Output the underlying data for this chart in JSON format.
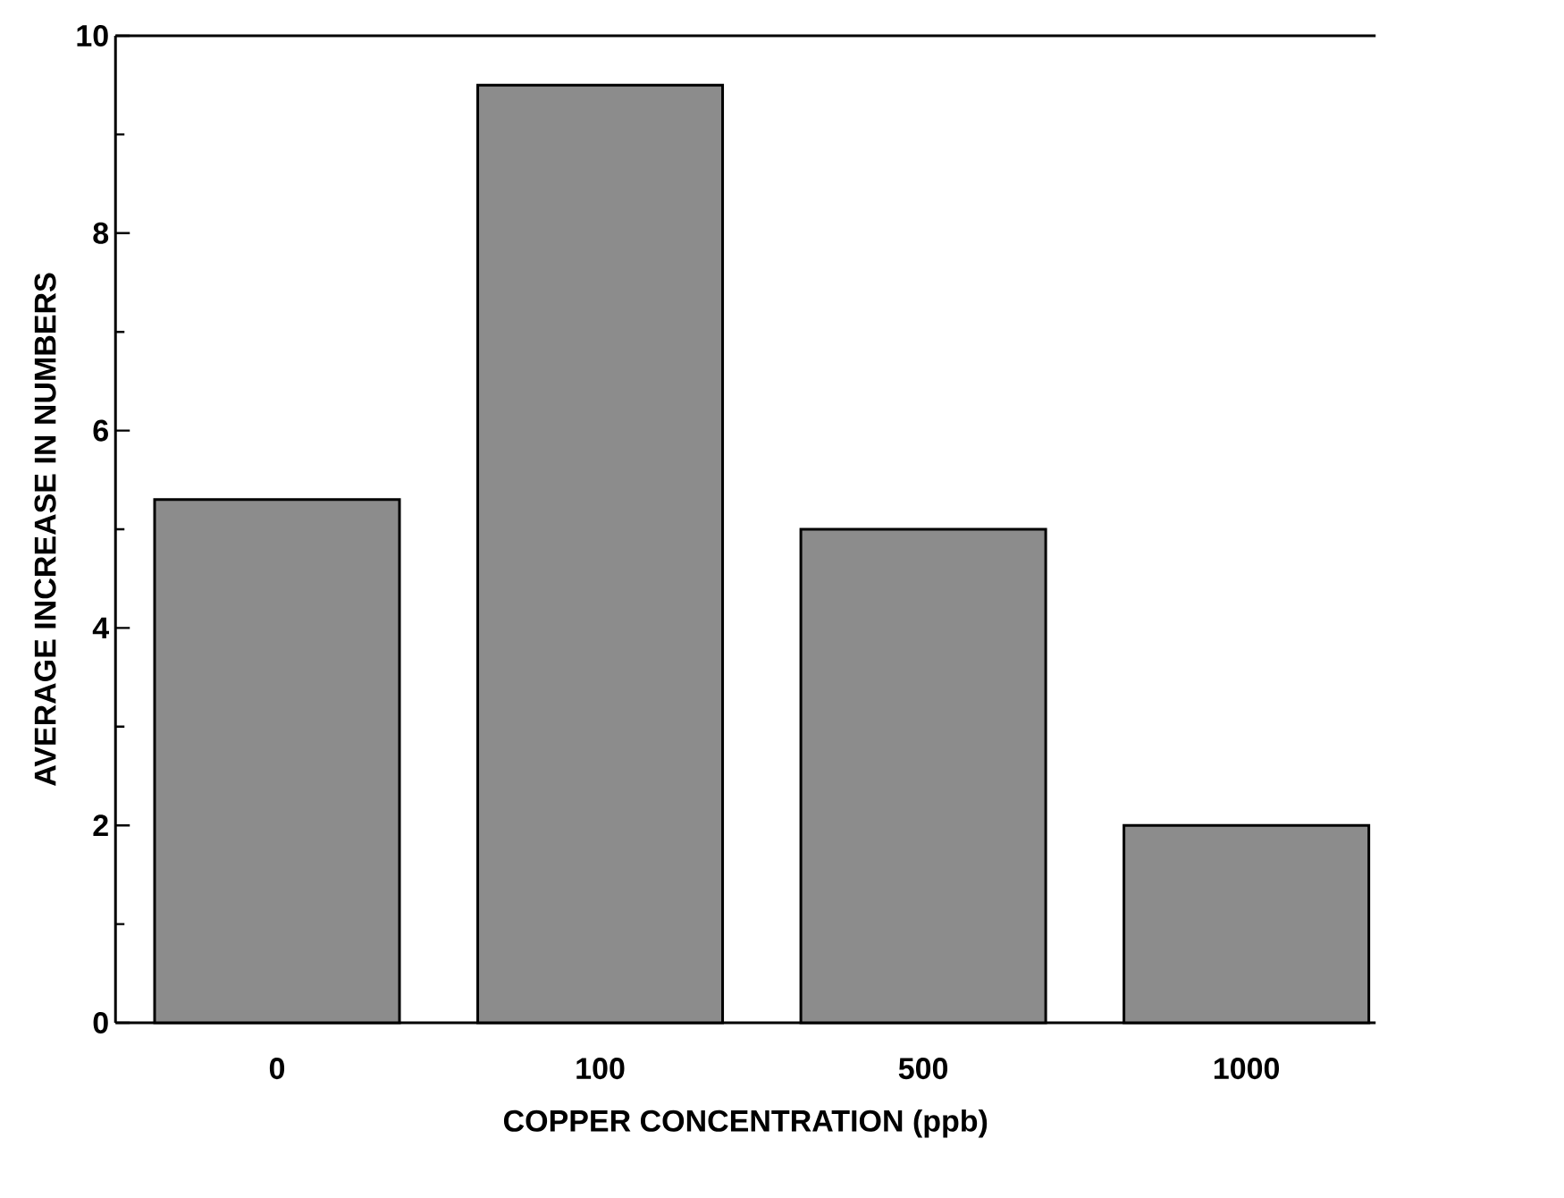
{
  "chart_data": {
    "type": "bar",
    "xlabel": "COPPER CONCENTRATION (ppb)",
    "ylabel": "AVERAGE INCREASE IN NUMBERS",
    "categories": [
      "0",
      "100",
      "500",
      "1000"
    ],
    "values": [
      5.3,
      9.5,
      5.0,
      2.0
    ],
    "color": "#8c8c8c",
    "ylim": [
      0,
      10
    ],
    "yticks": [
      0,
      2,
      4,
      6,
      8,
      10
    ]
  }
}
